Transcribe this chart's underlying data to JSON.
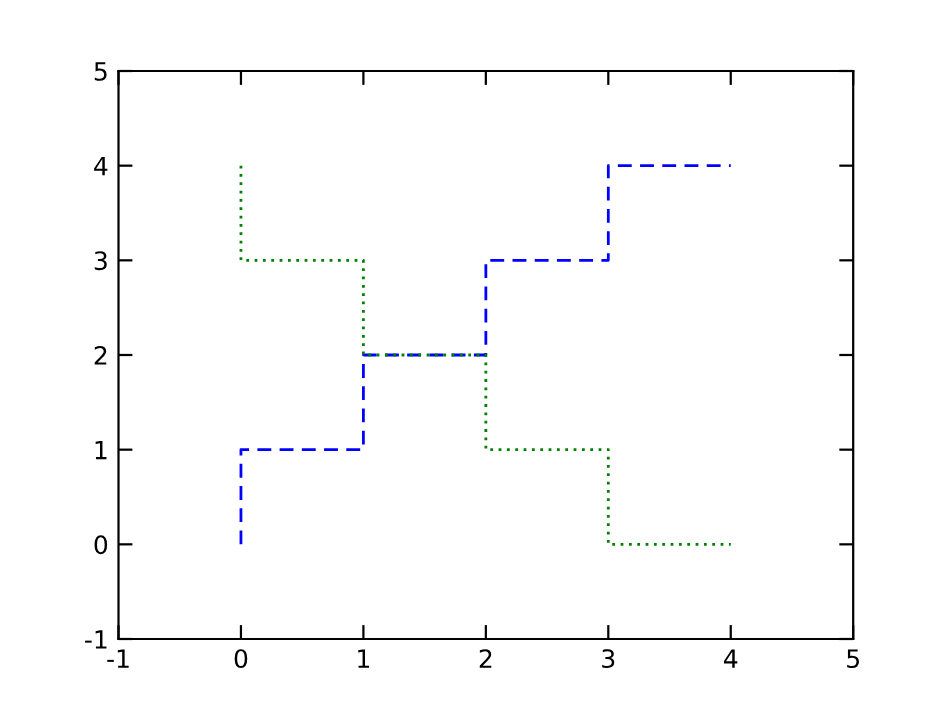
{
  "chart_data": {
    "type": "step",
    "x": [
      0,
      1,
      2,
      3,
      4
    ],
    "series": [
      {
        "color": "#0000ff",
        "values": [
          0,
          1,
          2,
          3,
          4
        ],
        "line_style": "dashed"
      },
      {
        "color": "#008000",
        "values": [
          4,
          3,
          2,
          1,
          0
        ],
        "line_style": "dotted"
      }
    ],
    "xlim": [
      -1,
      5
    ],
    "ylim": [
      -1,
      5
    ],
    "xticks": [
      -1,
      0,
      1,
      2,
      3,
      4,
      5
    ],
    "yticks": [
      -1,
      0,
      1,
      2,
      3,
      4,
      5
    ],
    "grid": false,
    "legend": false,
    "marker": "none"
  }
}
